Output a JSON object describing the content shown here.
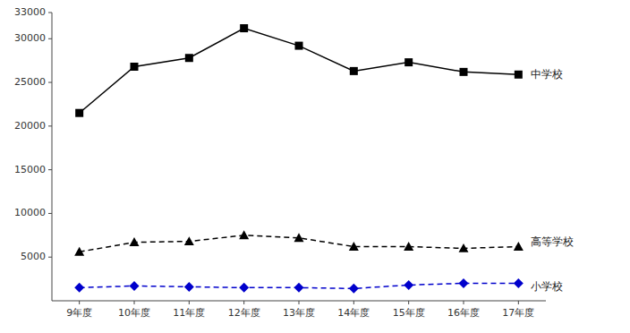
{
  "chart_data": {
    "type": "line",
    "categories": [
      "9年度",
      "10年度",
      "11年度",
      "12年度",
      "13年度",
      "14年度",
      "15年度",
      "16年度",
      "17年度"
    ],
    "series": [
      {
        "name": "中学校",
        "color": "#000000",
        "marker": "square",
        "line_style": "solid",
        "values": [
          21500,
          26800,
          27800,
          31200,
          29200,
          26300,
          27300,
          26200,
          25900
        ]
      },
      {
        "name": "高等学校",
        "color": "#000000",
        "marker": "triangle",
        "line_style": "dashed",
        "values": [
          5600,
          6700,
          6800,
          7500,
          7200,
          6200,
          6200,
          6000,
          6200
        ]
      },
      {
        "name": "小学校",
        "color": "#0000cc",
        "marker": "diamond",
        "line_style": "dashed",
        "values": [
          1500,
          1700,
          1600,
          1500,
          1500,
          1400,
          1800,
          2000,
          2000
        ]
      }
    ],
    "ylim": [
      0,
      33000
    ],
    "yticks": [
      5000,
      10000,
      15000,
      20000,
      25000,
      30000,
      33000
    ],
    "grid": false
  }
}
